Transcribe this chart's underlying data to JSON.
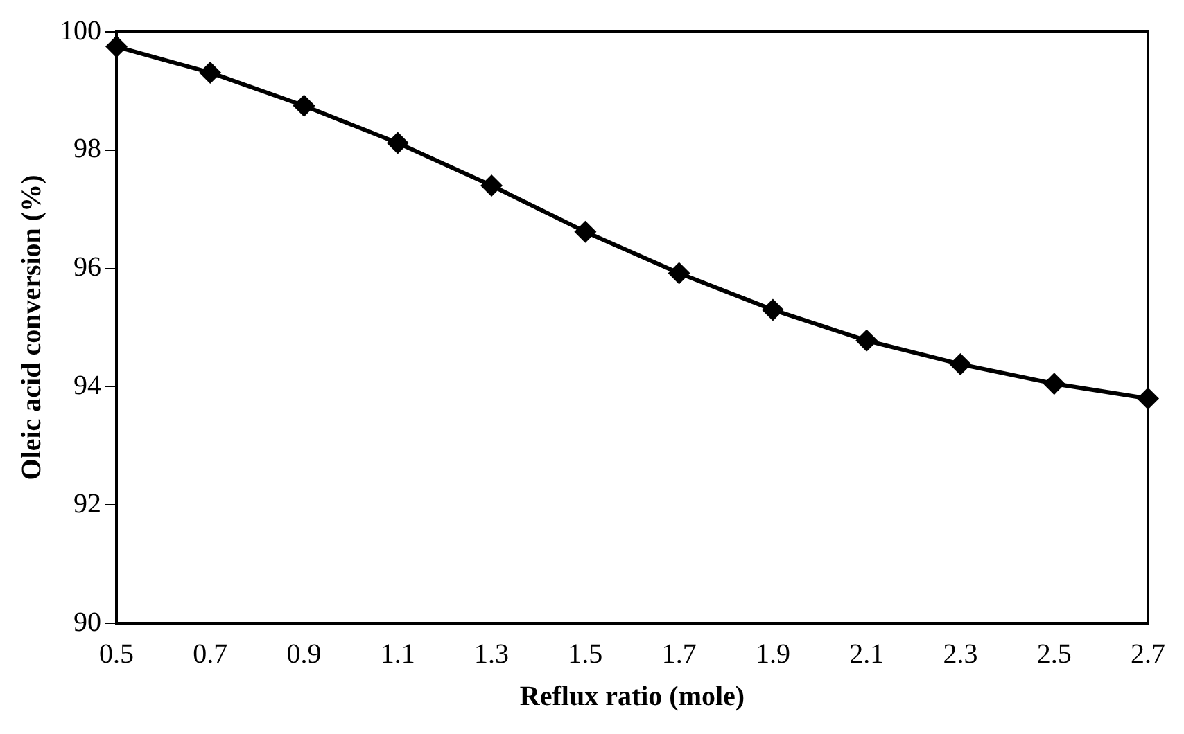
{
  "chart_data": {
    "type": "line",
    "xlabel": "Reflux ratio (mole)",
    "ylabel": "Oleic acid conversion (%)",
    "x": [
      0.5,
      0.7,
      0.9,
      1.1,
      1.3,
      1.5,
      1.7,
      1.9,
      2.1,
      2.3,
      2.5,
      2.7
    ],
    "series": [
      {
        "color": "#000000",
        "values": [
          99.75,
          99.31,
          98.75,
          98.12,
          97.4,
          96.62,
          95.92,
          95.3,
          94.78,
          94.38,
          94.05,
          93.8
        ]
      }
    ],
    "xlim": [
      0.5,
      2.7
    ],
    "xticks": [
      0.5,
      0.7,
      0.9,
      1.1,
      1.3,
      1.5,
      1.7,
      1.9,
      2.1,
      2.3,
      2.5,
      2.7
    ],
    "ylim": [
      90,
      100
    ],
    "yticks": [
      90,
      92,
      94,
      96,
      98,
      100
    ],
    "grid": false,
    "legend": false,
    "marker": "diamond",
    "line_style": "solid"
  }
}
